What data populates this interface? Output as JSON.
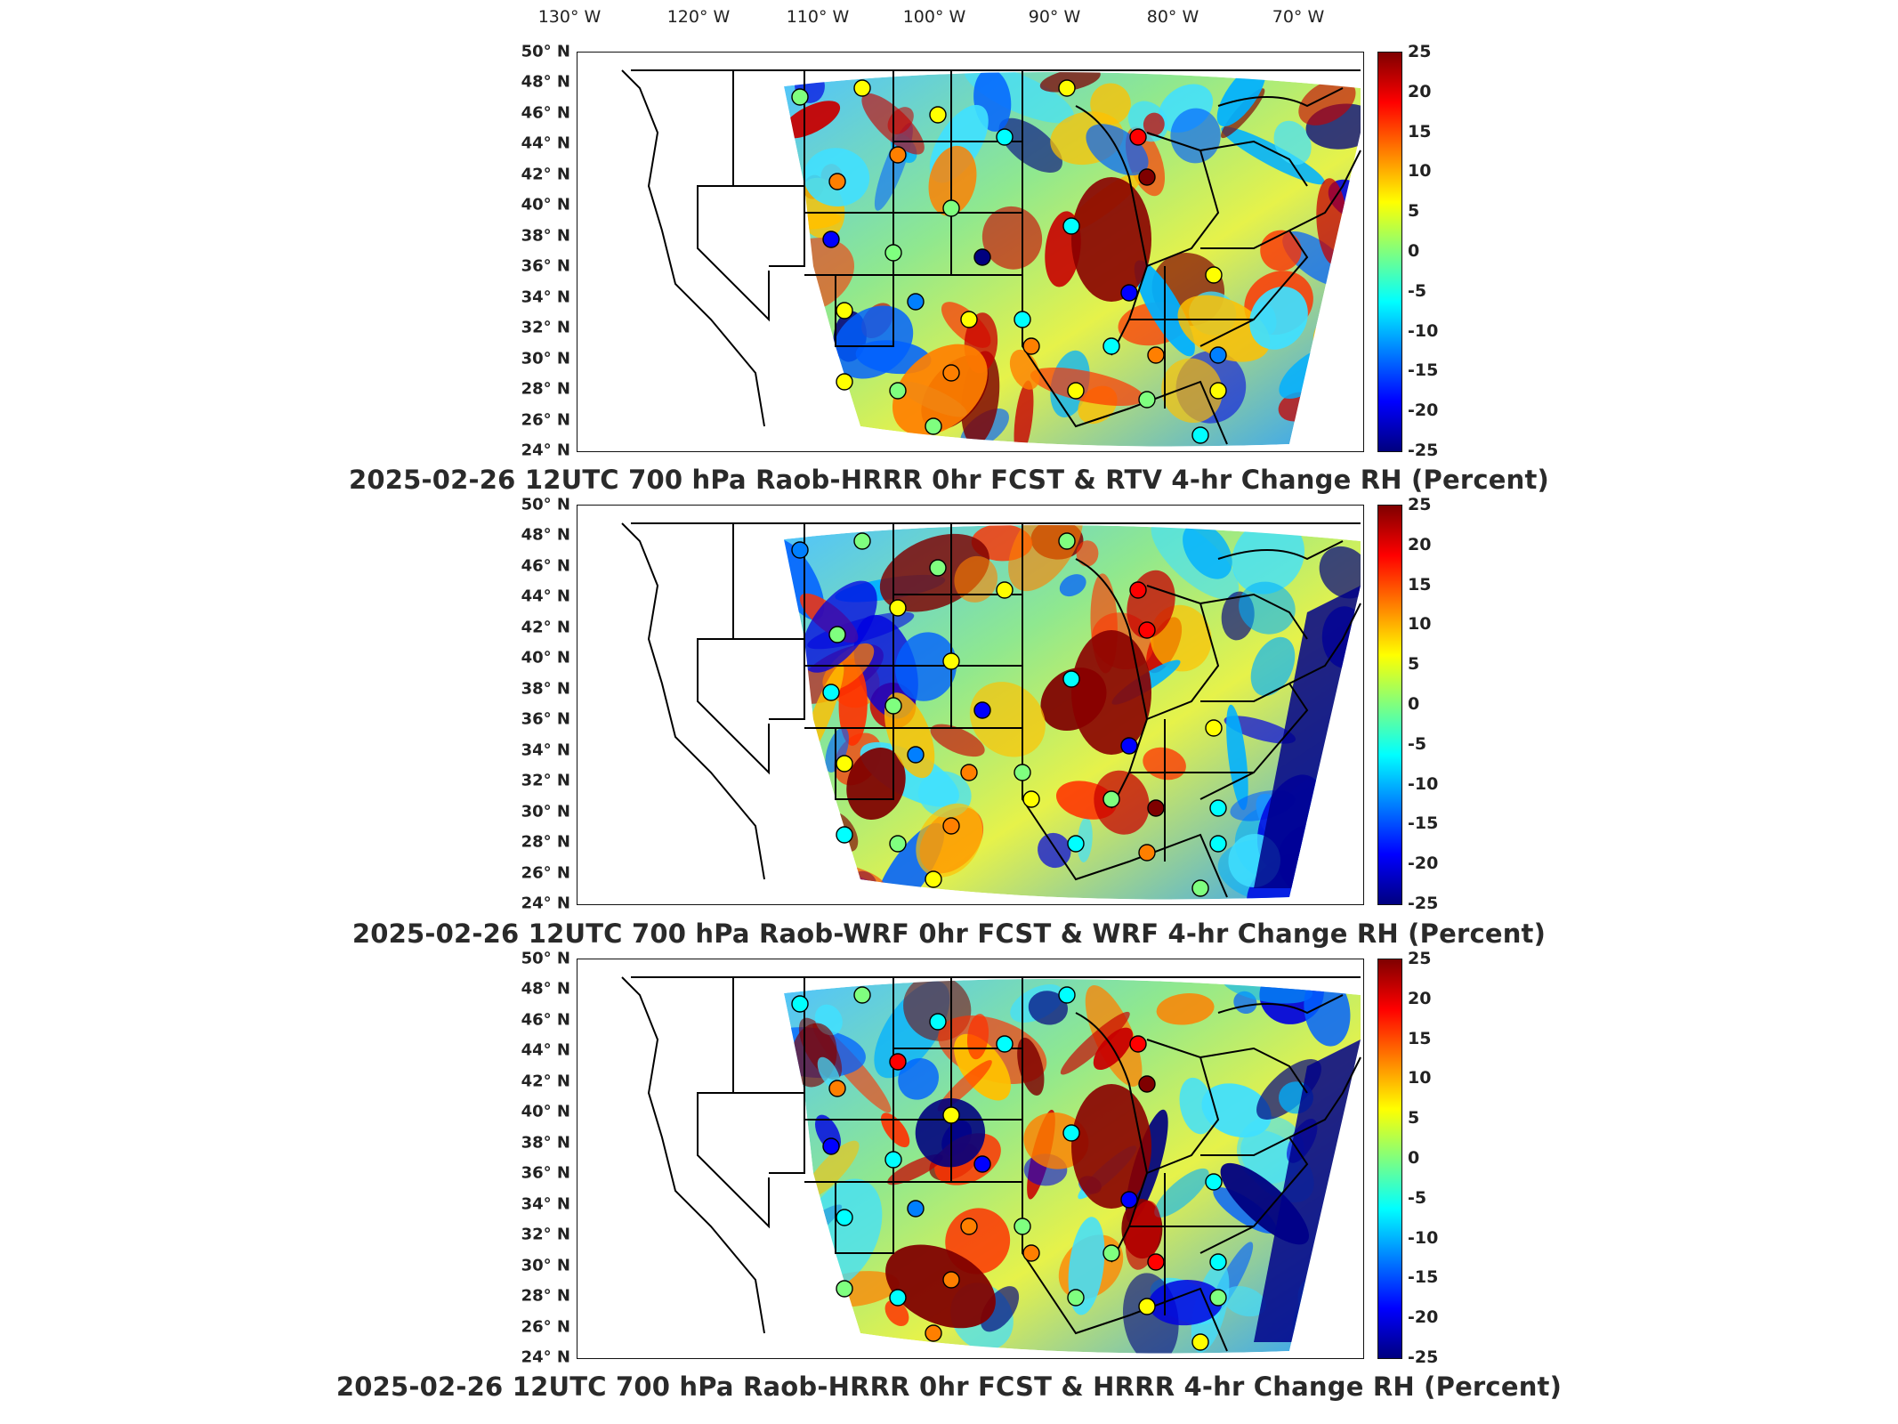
{
  "lon_labels": [
    "130° W",
    "120° W",
    "110° W",
    "100° W",
    "90° W",
    "80° W",
    "70° W"
  ],
  "lat_labels": [
    "50° N",
    "48° N",
    "46° N",
    "44° N",
    "42° N",
    "40° N",
    "38° N",
    "36° N",
    "34° N",
    "32° N",
    "30° N",
    "28° N",
    "26° N",
    "24° N"
  ],
  "colorbar": {
    "ticks": [
      "25",
      "20",
      "15",
      "10",
      "5",
      "0",
      "-5",
      "-10",
      "-15",
      "-20",
      "-25"
    ],
    "range": [
      -25,
      25
    ],
    "colormap": "jet",
    "colors": [
      "#00007f",
      "#0000ff",
      "#007fff",
      "#00ffff",
      "#7fff7f",
      "#ffff00",
      "#ff7f00",
      "#ff0000",
      "#7f0000"
    ]
  },
  "panels": [
    {
      "title": "2025-02-26 12UTC 700 hPa Raob-HRRR 0hr FCST & RTV 4-hr Change RH (Percent)"
    },
    {
      "title": "2025-02-26 12UTC 700 hPa Raob-WRF 0hr FCST & WRF 4-hr Change RH (Percent)"
    },
    {
      "title": "2025-02-26 12UTC 700 hPa Raob-HRRR 0hr FCST & HRRR 4-hr Change RH (Percent)"
    }
  ]
}
